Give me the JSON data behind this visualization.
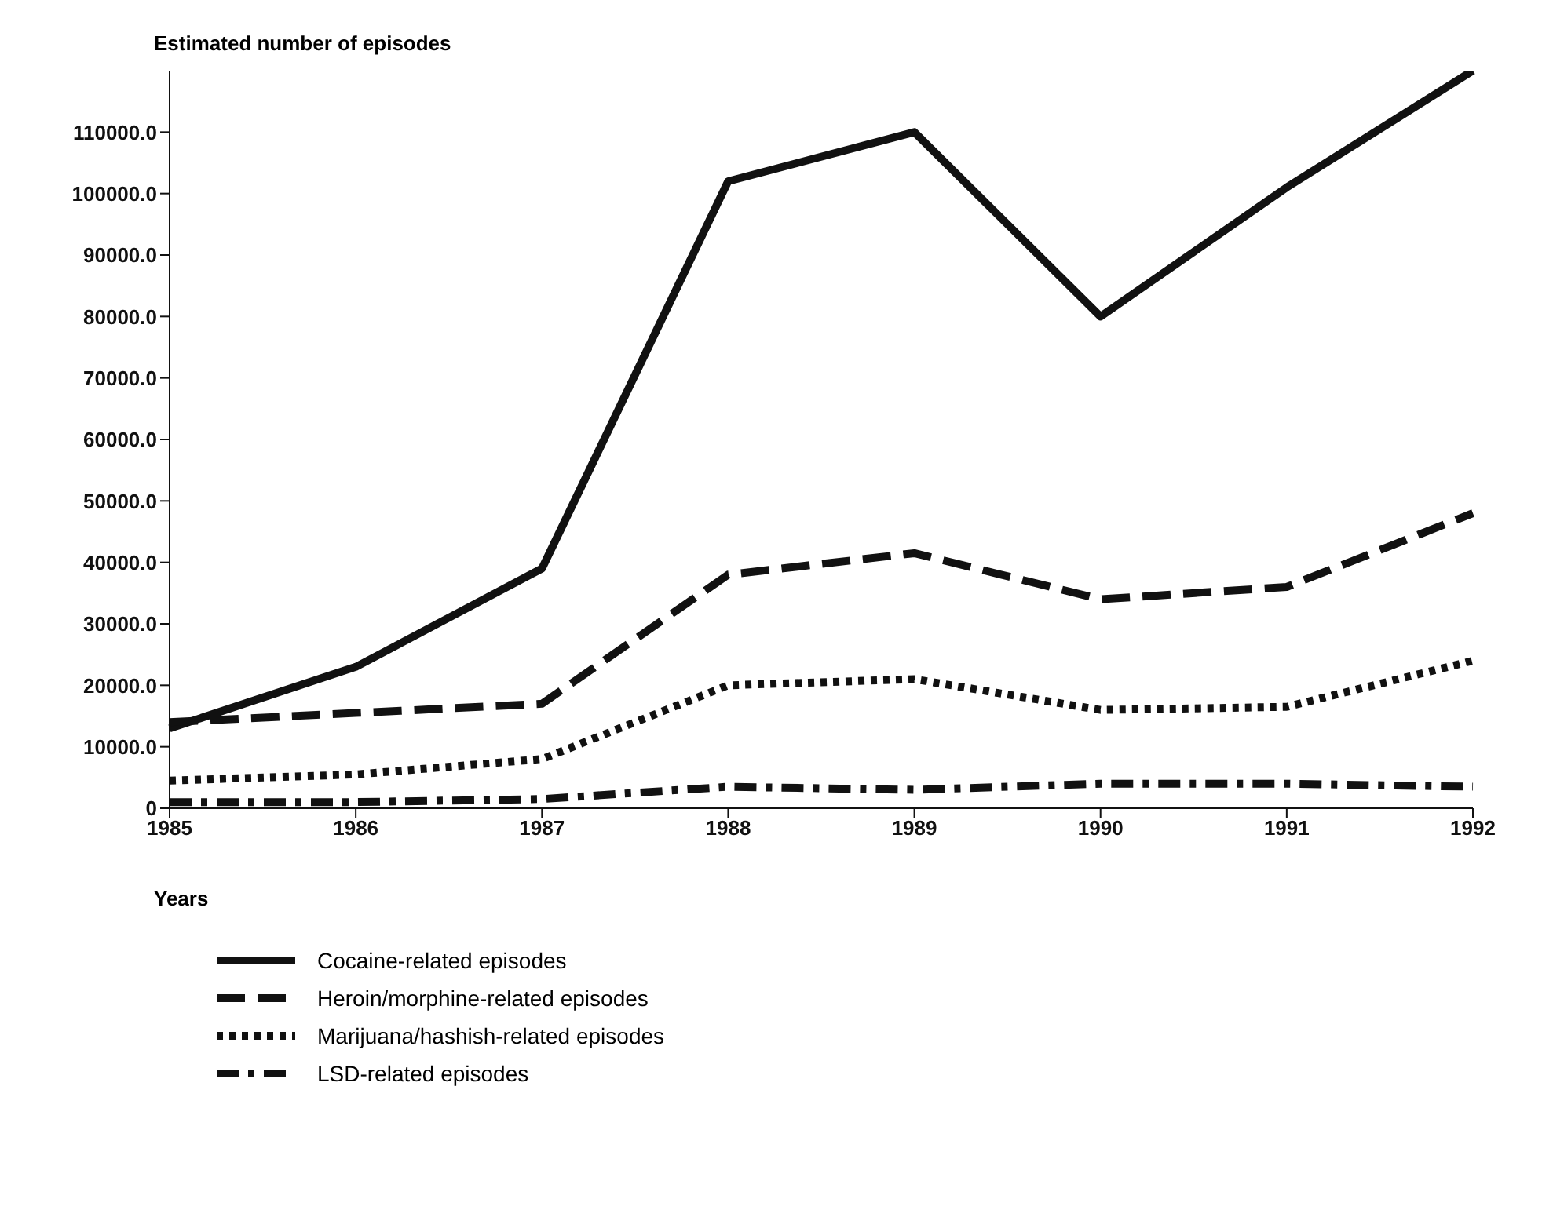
{
  "chart_data": {
    "type": "line",
    "ylabel": "Estimated number of episodes",
    "xlabel": "Years",
    "categories": [
      "1985",
      "1986",
      "1987",
      "1988",
      "1989",
      "1990",
      "1991",
      "1992"
    ],
    "series": [
      {
        "name": "Cocaine-related episodes",
        "color": "#111111",
        "line_style": "solid",
        "values": [
          13000,
          23000,
          39000,
          102000,
          110000,
          80000,
          101000,
          120000
        ]
      },
      {
        "name": "Heroin/morphine-related episodes",
        "color": "#111111",
        "line_style": "dashed",
        "values": [
          14000,
          15500,
          17000,
          38000,
          41500,
          34000,
          36000,
          48000
        ]
      },
      {
        "name": "Marijuana/hashish-related episodes",
        "color": "#111111",
        "line_style": "dotted",
        "values": [
          4500,
          5500,
          8000,
          20000,
          21000,
          16000,
          16500,
          24000
        ]
      },
      {
        "name": "LSD-related episodes",
        "color": "#111111",
        "line_style": "dashdot",
        "values": [
          1000,
          1000,
          1500,
          3500,
          3000,
          4000,
          4000,
          3500
        ]
      }
    ],
    "ylim": [
      0,
      120000
    ],
    "yticks": [
      0,
      {
        "value": 10000,
        "label": "10000.0"
      },
      {
        "value": 20000,
        "label": "20000.0"
      },
      {
        "value": 30000,
        "label": "30000.0"
      },
      {
        "value": 40000,
        "label": "40000.0"
      },
      {
        "value": 50000,
        "label": "50000.0"
      },
      {
        "value": 60000,
        "label": "60000.0"
      },
      {
        "value": 70000,
        "label": "70000.0"
      },
      {
        "value": 80000,
        "label": "80000.0"
      },
      {
        "value": 90000,
        "label": "90000.0"
      },
      {
        "value": 100000,
        "label": "100000.0"
      },
      {
        "value": 110000,
        "label": "110000.0"
      }
    ],
    "grid": false,
    "legend": "bottom left",
    "marker": "none"
  }
}
